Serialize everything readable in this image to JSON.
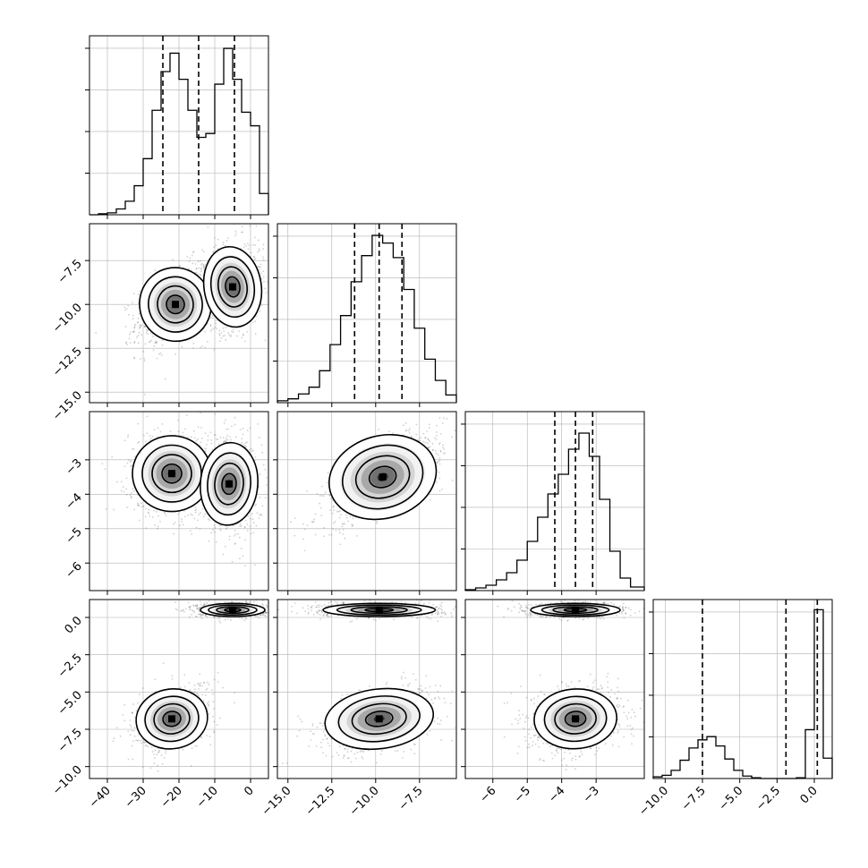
{
  "chart_data": {
    "type": "scatter",
    "title": "",
    "params": [
      {
        "name": "",
        "range": [
          -45,
          5
        ],
        "ticks": [
          -40,
          -30,
          -20,
          -10,
          0
        ],
        "tick_labels": [
          "−40",
          "−30",
          "−20",
          "−10",
          "0"
        ],
        "quantiles": [
          -24.5,
          -14.5,
          -4.5
        ],
        "hist": [
          {
            "x0": -45,
            "x1": -42.5,
            "c": 0
          },
          {
            "x0": -42.5,
            "x1": -40,
            "c": 1
          },
          {
            "x0": -40,
            "x1": -37.5,
            "c": 2
          },
          {
            "x0": -37.5,
            "x1": -35,
            "c": 6
          },
          {
            "x0": -35,
            "x1": -32.5,
            "c": 14
          },
          {
            "x0": -32.5,
            "x1": -30,
            "c": 30
          },
          {
            "x0": -30,
            "x1": -27.5,
            "c": 58
          },
          {
            "x0": -27.5,
            "x1": -25,
            "c": 108
          },
          {
            "x0": -25,
            "x1": -22.5,
            "c": 148
          },
          {
            "x0": -22.5,
            "x1": -20,
            "c": 167
          },
          {
            "x0": -20,
            "x1": -17.5,
            "c": 140
          },
          {
            "x0": -17.5,
            "x1": -15,
            "c": 108
          },
          {
            "x0": -15,
            "x1": -12.5,
            "c": 80
          },
          {
            "x0": -12.5,
            "x1": -10,
            "c": 84
          },
          {
            "x0": -10,
            "x1": -7.5,
            "c": 135
          },
          {
            "x0": -7.5,
            "x1": -5,
            "c": 172
          },
          {
            "x0": -5,
            "x1": -2.5,
            "c": 140
          },
          {
            "x0": -2.5,
            "x1": 0,
            "c": 106
          },
          {
            "x0": 0,
            "x1": 2.5,
            "c": 92
          },
          {
            "x0": 2.5,
            "x1": 5,
            "c": 22
          }
        ],
        "ymax": 185
      },
      {
        "name": "",
        "range": [
          -15.6,
          -5.4
        ],
        "ticks": [
          -15.0,
          -12.5,
          -10.0,
          -7.5
        ],
        "tick_labels": [
          "−15.0",
          "−12.5",
          "−10.0",
          "−7.5"
        ],
        "quantiles": [
          -11.2,
          -9.8,
          -8.5
        ],
        "hist": [
          {
            "x0": -15.6,
            "x1": -15.0,
            "c": 2
          },
          {
            "x0": -15.0,
            "x1": -14.4,
            "c": 4
          },
          {
            "x0": -14.4,
            "x1": -13.8,
            "c": 9
          },
          {
            "x0": -13.8,
            "x1": -13.2,
            "c": 16
          },
          {
            "x0": -13.2,
            "x1": -12.6,
            "c": 33
          },
          {
            "x0": -12.6,
            "x1": -12.0,
            "c": 60
          },
          {
            "x0": -12.0,
            "x1": -11.4,
            "c": 90
          },
          {
            "x0": -11.4,
            "x1": -10.8,
            "c": 125
          },
          {
            "x0": -10.8,
            "x1": -10.2,
            "c": 152
          },
          {
            "x0": -10.2,
            "x1": -9.6,
            "c": 173
          },
          {
            "x0": -9.6,
            "x1": -9.0,
            "c": 165
          },
          {
            "x0": -9.0,
            "x1": -8.4,
            "c": 150
          },
          {
            "x0": -8.4,
            "x1": -7.8,
            "c": 117
          },
          {
            "x0": -7.8,
            "x1": -7.2,
            "c": 77
          },
          {
            "x0": -7.2,
            "x1": -6.6,
            "c": 45
          },
          {
            "x0": -6.6,
            "x1": -6.0,
            "c": 23
          },
          {
            "x0": -6.0,
            "x1": -5.4,
            "c": 8
          }
        ],
        "ymax": 185
      },
      {
        "name": "",
        "range": [
          -6.8,
          -1.6
        ],
        "ticks": [
          -6,
          -5,
          -4,
          -3
        ],
        "tick_labels": [
          "−6",
          "−5",
          "−4",
          "−3"
        ],
        "quantiles": [
          -4.2,
          -3.6,
          -3.1
        ],
        "hist": [
          {
            "x0": -6.8,
            "x1": -6.5,
            "c": 1
          },
          {
            "x0": -6.5,
            "x1": -6.2,
            "c": 3
          },
          {
            "x0": -6.2,
            "x1": -5.9,
            "c": 6
          },
          {
            "x0": -5.9,
            "x1": -5.6,
            "c": 12
          },
          {
            "x0": -5.6,
            "x1": -5.3,
            "c": 20
          },
          {
            "x0": -5.3,
            "x1": -5.0,
            "c": 34
          },
          {
            "x0": -5.0,
            "x1": -4.7,
            "c": 55
          },
          {
            "x0": -4.7,
            "x1": -4.4,
            "c": 82
          },
          {
            "x0": -4.4,
            "x1": -4.1,
            "c": 108
          },
          {
            "x0": -4.1,
            "x1": -3.8,
            "c": 130
          },
          {
            "x0": -3.8,
            "x1": -3.5,
            "c": 158
          },
          {
            "x0": -3.5,
            "x1": -3.2,
            "c": 176
          },
          {
            "x0": -3.2,
            "x1": -2.9,
            "c": 150
          },
          {
            "x0": -2.9,
            "x1": -2.6,
            "c": 102
          },
          {
            "x0": -2.6,
            "x1": -2.3,
            "c": 44
          },
          {
            "x0": -2.3,
            "x1": -2.0,
            "c": 14
          },
          {
            "x0": -2.0,
            "x1": -1.6,
            "c": 4
          }
        ],
        "ymax": 200
      },
      {
        "name": "",
        "range": [
          -10.8,
          1.2
        ],
        "ticks": [
          -10.0,
          -7.5,
          -5.0,
          -2.5,
          0.0
        ],
        "tick_labels": [
          "−10.0",
          "−7.5",
          "−5.0",
          "−2.5",
          "0.0"
        ],
        "quantiles": [
          -7.5,
          -1.9,
          0.2
        ],
        "hist": [
          {
            "x0": -10.8,
            "x1": -10.2,
            "c": 4
          },
          {
            "x0": -10.2,
            "x1": -9.6,
            "c": 8
          },
          {
            "x0": -9.6,
            "x1": -9.0,
            "c": 20
          },
          {
            "x0": -9.0,
            "x1": -8.4,
            "c": 45
          },
          {
            "x0": -8.4,
            "x1": -7.8,
            "c": 75
          },
          {
            "x0": -7.8,
            "x1": -7.2,
            "c": 95
          },
          {
            "x0": -7.2,
            "x1": -6.6,
            "c": 103
          },
          {
            "x0": -6.6,
            "x1": -6.0,
            "c": 80
          },
          {
            "x0": -6.0,
            "x1": -5.4,
            "c": 48
          },
          {
            "x0": -5.4,
            "x1": -4.8,
            "c": 20
          },
          {
            "x0": -4.8,
            "x1": -4.2,
            "c": 6
          },
          {
            "x0": -4.2,
            "x1": -3.6,
            "c": 2
          },
          {
            "x0": -3.6,
            "x1": -3.0,
            "c": 0
          },
          {
            "x0": -3.0,
            "x1": -2.4,
            "c": 0
          },
          {
            "x0": -2.4,
            "x1": -1.8,
            "c": 0
          },
          {
            "x0": -1.8,
            "x1": -1.2,
            "c": 0
          },
          {
            "x0": -1.2,
            "x1": -0.6,
            "c": 2
          },
          {
            "x0": -0.6,
            "x1": 0.0,
            "c": 120
          },
          {
            "x0": 0.0,
            "x1": 0.6,
            "c": 415
          },
          {
            "x0": 0.6,
            "x1": 1.2,
            "c": 50
          }
        ],
        "ymax": 440
      }
    ],
    "pairs": [
      {
        "i": 1,
        "j": 0,
        "modes": [
          {
            "cx": -21,
            "cy": -10.0,
            "sx": 5.0,
            "sy": 1.05,
            "rho": 0.45,
            "peak": "-21,-10"
          },
          {
            "cx": -5,
            "cy": -9.0,
            "sx": 4.0,
            "sy": 1.15,
            "rho": 0.2
          }
        ]
      },
      {
        "i": 2,
        "j": 0,
        "modes": [
          {
            "cx": -22,
            "cy": -3.4,
            "sx": 5.5,
            "sy": 0.55,
            "rho": 0.0
          },
          {
            "cx": -6,
            "cy": -3.7,
            "sx": 4.0,
            "sy": 0.6,
            "rho": -0.1
          }
        ]
      },
      {
        "i": 2,
        "j": 1,
        "modes": [
          {
            "cx": -9.6,
            "cy": -3.5,
            "sx": 1.55,
            "sy": 0.6,
            "rho": 0.7
          }
        ]
      },
      {
        "i": 3,
        "j": 0,
        "modes": [
          {
            "cx": -5,
            "cy": 0.5,
            "sx": 4.5,
            "sy": 0.22,
            "rho": 0.0
          },
          {
            "cx": -22,
            "cy": -6.8,
            "sx": 5.0,
            "sy": 1.0,
            "rho": 0.35
          }
        ]
      },
      {
        "i": 3,
        "j": 1,
        "modes": [
          {
            "cx": -9.8,
            "cy": 0.5,
            "sx": 1.6,
            "sy": 0.22,
            "rho": 0.0
          },
          {
            "cx": -9.8,
            "cy": -6.8,
            "sx": 1.55,
            "sy": 1.0,
            "rho": 0.4
          }
        ]
      },
      {
        "i": 3,
        "j": 2,
        "modes": [
          {
            "cx": -3.6,
            "cy": 0.5,
            "sx": 0.65,
            "sy": 0.22,
            "rho": 0.0
          },
          {
            "cx": -3.6,
            "cy": -6.8,
            "sx": 0.6,
            "sy": 1.0,
            "rho": 0.15
          }
        ]
      }
    ],
    "grid": true,
    "legend": "none"
  }
}
